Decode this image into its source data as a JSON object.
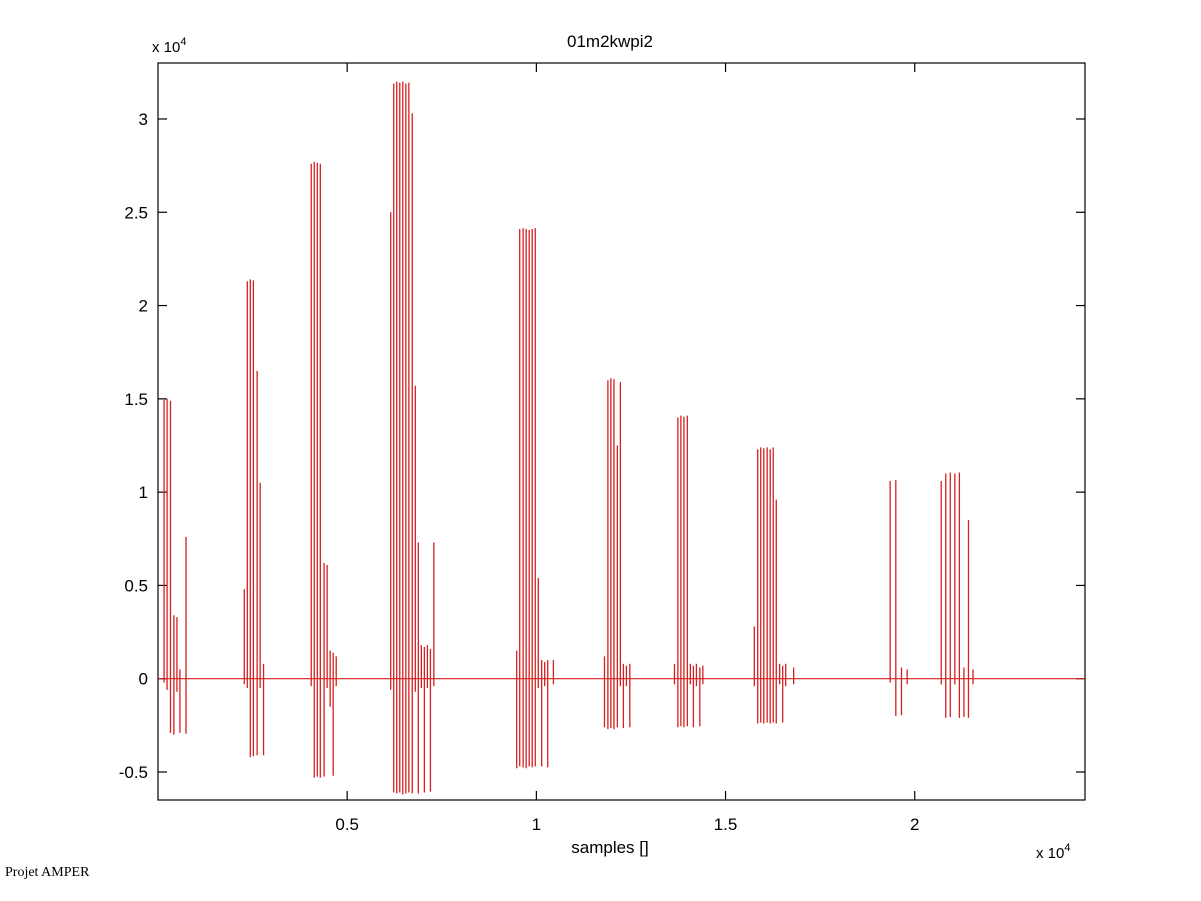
{
  "window_title": "01m2kwpi2",
  "footer": {
    "label": "Projet AMPER"
  },
  "chart_data": {
    "type": "line",
    "title": "01m2kwpi2",
    "xlabel": "samples []",
    "ylabel": "",
    "x_axis_multiplier": {
      "base": "x 10",
      "exp": "4"
    },
    "y_axis_multiplier": {
      "base": "x 10",
      "exp": "4"
    },
    "xlim": [
      0,
      24500
    ],
    "ylim": [
      -6500,
      33000
    ],
    "grid": false,
    "legend": "none",
    "box": true,
    "background": "#ffffff",
    "axis_color": "#000000",
    "line_color": "#d42020",
    "baseline": 0,
    "x_ticks": [
      {
        "value": 5000,
        "label": "0.5"
      },
      {
        "value": 10000,
        "label": "1"
      },
      {
        "value": 15000,
        "label": "1.5"
      },
      {
        "value": 20000,
        "label": "2"
      }
    ],
    "y_ticks": [
      {
        "value": -5000,
        "label": "-0.5"
      },
      {
        "value": 0,
        "label": "0"
      },
      {
        "value": 5000,
        "label": "0.5"
      },
      {
        "value": 10000,
        "label": "1"
      },
      {
        "value": 15000,
        "label": "1.5"
      },
      {
        "value": 20000,
        "label": "2"
      },
      {
        "value": 25000,
        "label": "2.5"
      },
      {
        "value": 30000,
        "label": "3"
      }
    ],
    "spike_format": [
      "x_sample",
      "top_value",
      "bottom_value"
    ],
    "bursts": [
      {
        "spikes": [
          [
            160,
            14950,
            -200
          ],
          [
            240,
            15000,
            -600
          ],
          [
            330,
            14900,
            -2900
          ],
          [
            420,
            3400,
            -3000
          ],
          [
            500,
            3300,
            -700
          ],
          [
            580,
            500,
            -2900
          ],
          [
            740,
            7600,
            -2950
          ]
        ]
      },
      {
        "spikes": [
          [
            2280,
            4800,
            -300
          ],
          [
            2360,
            21300,
            -500
          ],
          [
            2440,
            21400,
            -4200
          ],
          [
            2520,
            21350,
            -4150
          ],
          [
            2620,
            16500,
            -4100
          ],
          [
            2700,
            10500,
            -500
          ],
          [
            2790,
            800,
            -4100
          ]
        ]
      },
      {
        "spikes": [
          [
            4050,
            27600,
            -400
          ],
          [
            4130,
            27700,
            -5300
          ],
          [
            4210,
            27650,
            -5250
          ],
          [
            4290,
            27600,
            -5300
          ],
          [
            4390,
            6200,
            -5250
          ],
          [
            4470,
            6100,
            -500
          ],
          [
            4550,
            1500,
            -1500
          ],
          [
            4630,
            1400,
            -5200
          ],
          [
            4710,
            1200,
            -400
          ]
        ]
      },
      {
        "spikes": [
          [
            6150,
            25000,
            -600
          ],
          [
            6230,
            31900,
            -6100
          ],
          [
            6310,
            32000,
            -6150
          ],
          [
            6390,
            31950,
            -6100
          ],
          [
            6470,
            32000,
            -6200
          ],
          [
            6550,
            31900,
            -6150
          ],
          [
            6630,
            31950,
            -6100
          ],
          [
            6720,
            30300,
            -6150
          ],
          [
            6800,
            15700,
            -700
          ],
          [
            6880,
            7300,
            -6150
          ],
          [
            6960,
            1800,
            -500
          ],
          [
            7040,
            1700,
            -6100
          ],
          [
            7120,
            1800,
            -500
          ],
          [
            7200,
            1600,
            -6050
          ],
          [
            7290,
            7300,
            -400
          ]
        ]
      },
      {
        "spikes": [
          [
            9480,
            1500,
            -4800
          ],
          [
            9560,
            24100,
            -4700
          ],
          [
            9650,
            24150,
            -4750
          ],
          [
            9730,
            24100,
            -4800
          ],
          [
            9810,
            24050,
            -4700
          ],
          [
            9890,
            24100,
            -4750
          ],
          [
            9970,
            24150,
            -4700
          ],
          [
            10050,
            5400,
            -500
          ],
          [
            10140,
            1000,
            -4700
          ],
          [
            10220,
            900,
            -400
          ],
          [
            10300,
            1000,
            -4750
          ],
          [
            10450,
            1000,
            -300
          ]
        ]
      },
      {
        "spikes": [
          [
            11800,
            1200,
            -2600
          ],
          [
            11890,
            16000,
            -2700
          ],
          [
            11970,
            16100,
            -2650
          ],
          [
            12050,
            16050,
            -2700
          ],
          [
            12140,
            12500,
            -2600
          ],
          [
            12220,
            15900,
            -400
          ],
          [
            12300,
            800,
            -2650
          ],
          [
            12380,
            700,
            -400
          ],
          [
            12470,
            800,
            -2600
          ]
        ]
      },
      {
        "spikes": [
          [
            13650,
            800,
            -300
          ],
          [
            13740,
            14000,
            -2600
          ],
          [
            13820,
            14100,
            -2550
          ],
          [
            13900,
            14050,
            -2600
          ],
          [
            13990,
            14100,
            -2550
          ],
          [
            14070,
            800,
            -300
          ],
          [
            14150,
            700,
            -2600
          ],
          [
            14230,
            800,
            -400
          ],
          [
            14320,
            600,
            -2550
          ],
          [
            14400,
            700,
            -300
          ]
        ]
      },
      {
        "spikes": [
          [
            15760,
            2800,
            -400
          ],
          [
            15850,
            12300,
            -2400
          ],
          [
            15930,
            12400,
            -2350
          ],
          [
            16010,
            12350,
            -2400
          ],
          [
            16100,
            12400,
            -2350
          ],
          [
            16180,
            12300,
            -2400
          ],
          [
            16260,
            12400,
            -2350
          ],
          [
            16340,
            9600,
            -2400
          ],
          [
            16430,
            800,
            -300
          ],
          [
            16510,
            700,
            -2350
          ],
          [
            16590,
            800,
            -400
          ],
          [
            16800,
            600,
            -300
          ]
        ]
      },
      {
        "spikes": [
          [
            19350,
            10600,
            -200
          ],
          [
            19500,
            10650,
            -2000
          ],
          [
            19650,
            600,
            -1950
          ],
          [
            19800,
            500,
            -300
          ]
        ]
      },
      {
        "spikes": [
          [
            20700,
            10600,
            -300
          ],
          [
            20820,
            11000,
            -2100
          ],
          [
            20940,
            11050,
            -2050
          ],
          [
            21060,
            11000,
            -300
          ],
          [
            21180,
            11050,
            -2100
          ],
          [
            21300,
            600,
            -2050
          ],
          [
            21420,
            8500,
            -2100
          ],
          [
            21540,
            500,
            -300
          ]
        ]
      }
    ]
  }
}
